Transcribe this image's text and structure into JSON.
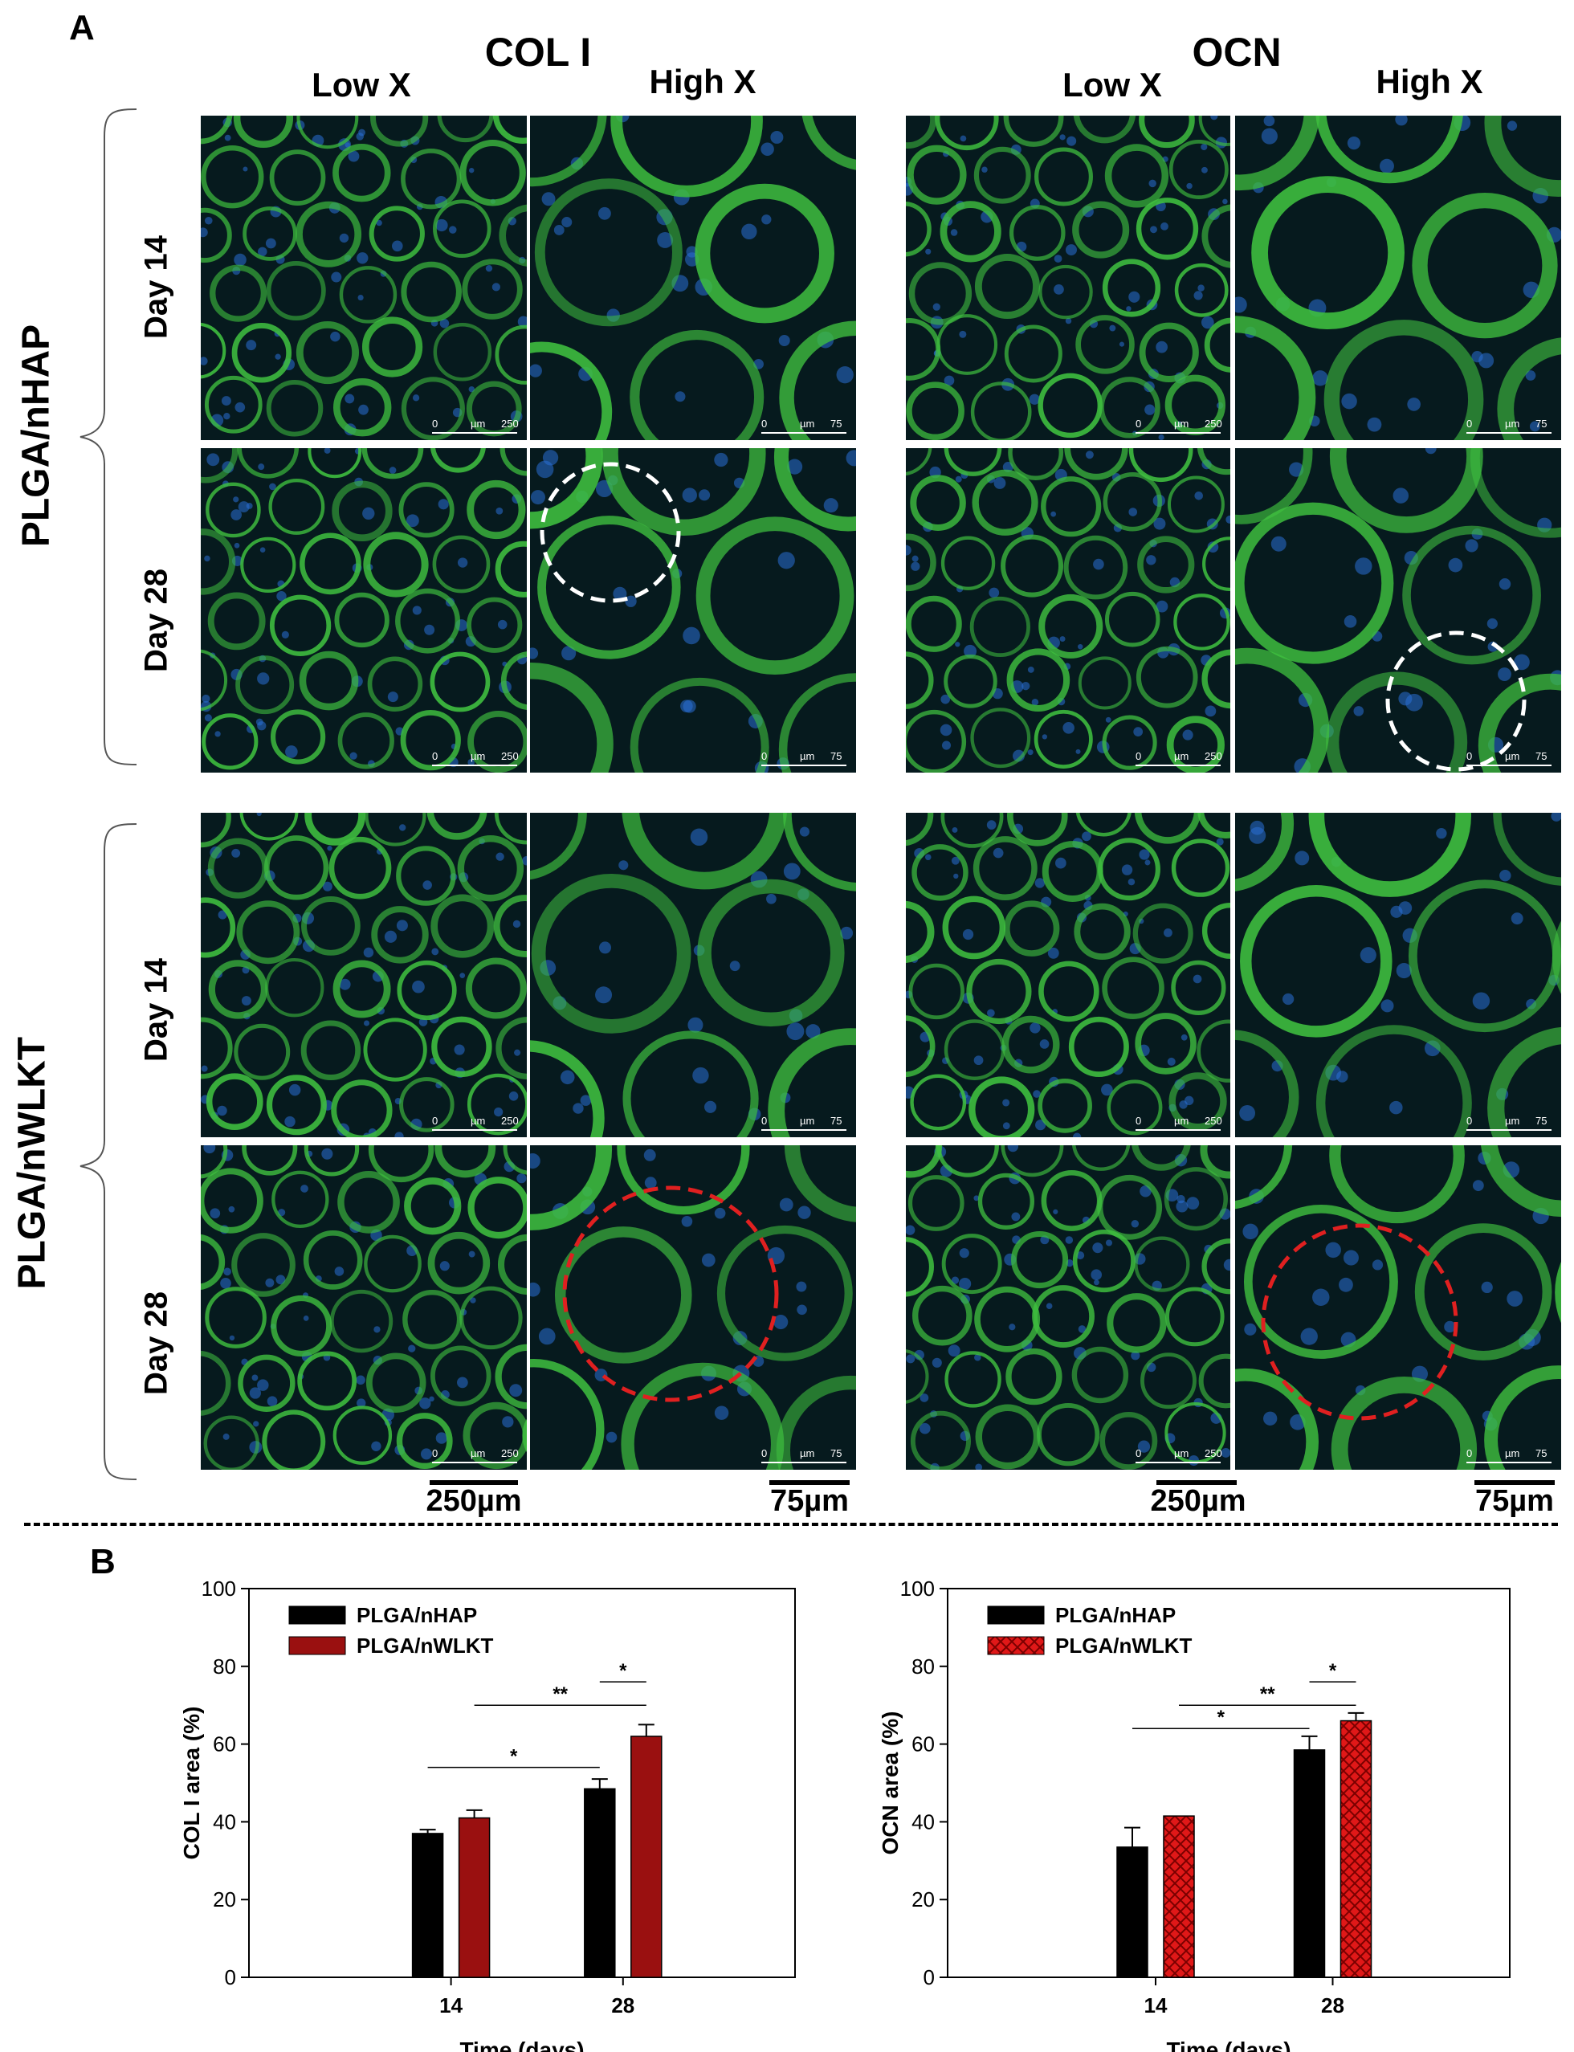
{
  "panel_a": {
    "letter": "A",
    "columns": [
      {
        "title": "COL I",
        "low": "Low X",
        "high": "High X"
      },
      {
        "title": "OCN",
        "low": "Low X",
        "high": "High X"
      }
    ],
    "groups": [
      {
        "label": "PLGA/nHAP",
        "days": [
          "Day 14",
          "Day 28"
        ]
      },
      {
        "label": "PLGA/nWLKT",
        "days": [
          "Day 14",
          "Day 28"
        ]
      }
    ],
    "micro_scale": {
      "low": {
        "zero": "0",
        "unit": "µm",
        "value": "250"
      },
      "high": {
        "zero": "0",
        "unit": "µm",
        "value": "75"
      }
    },
    "scalebars": {
      "low": "250µm",
      "high": "75µm"
    },
    "colors": {
      "fluor_green": "#3fbf3f",
      "fluor_blue": "#2a6fd6",
      "bg": "#061a1e",
      "circle_white": "#ffffff",
      "circle_red": "#e02020"
    }
  },
  "panel_b": {
    "letter": "B"
  },
  "chart_data": [
    {
      "type": "bar",
      "categories": [
        "14",
        "28"
      ],
      "xlabel": "Time (days)",
      "ylabel": "COL I area (%)",
      "ylim": [
        0,
        100
      ],
      "yticks": [
        "0",
        "20",
        "40",
        "60",
        "80",
        "100"
      ],
      "legend_position": "top-left",
      "series": [
        {
          "name": "PLGA/nHAP",
          "values": [
            37,
            48.5
          ],
          "errors": [
            1,
            2.5
          ],
          "color": "#000000",
          "pattern": "solid"
        },
        {
          "name": "PLGA/nWLKT",
          "values": [
            41,
            62
          ],
          "errors": [
            2,
            3
          ],
          "color": "#9a1010",
          "pattern": "solid"
        }
      ],
      "significance": [
        {
          "label": "*",
          "from": "PLGA/nHAP 14",
          "to": "PLGA/nHAP 28",
          "y": 54
        },
        {
          "label": "**",
          "from": "PLGA/nWLKT 14",
          "to": "PLGA/nWLKT 28",
          "y": 70
        },
        {
          "label": "*",
          "from": "PLGA/nHAP 28",
          "to": "PLGA/nWLKT 28",
          "y": 76
        }
      ]
    },
    {
      "type": "bar",
      "categories": [
        "14",
        "28"
      ],
      "xlabel": "Time (days)",
      "ylabel": "OCN area (%)",
      "ylim": [
        0,
        100
      ],
      "yticks": [
        "0",
        "20",
        "40",
        "60",
        "80",
        "100"
      ],
      "legend_position": "top-left",
      "series": [
        {
          "name": "PLGA/nHAP",
          "values": [
            33.5,
            58.5
          ],
          "errors": [
            5,
            3.5
          ],
          "color": "#000000",
          "pattern": "solid"
        },
        {
          "name": "PLGA/nWLKT",
          "values": [
            41.5,
            66
          ],
          "errors": [
            0,
            2
          ],
          "color": "#e01818",
          "pattern": "crosshatch"
        }
      ],
      "significance": [
        {
          "label": "*",
          "from": "PLGA/nHAP 14",
          "to": "PLGA/nHAP 28",
          "y": 64
        },
        {
          "label": "**",
          "from": "PLGA/nWLKT 14",
          "to": "PLGA/nWLKT 28",
          "y": 70
        },
        {
          "label": "*",
          "from": "PLGA/nHAP 28",
          "to": "PLGA/nWLKT 28",
          "y": 76
        }
      ]
    }
  ]
}
